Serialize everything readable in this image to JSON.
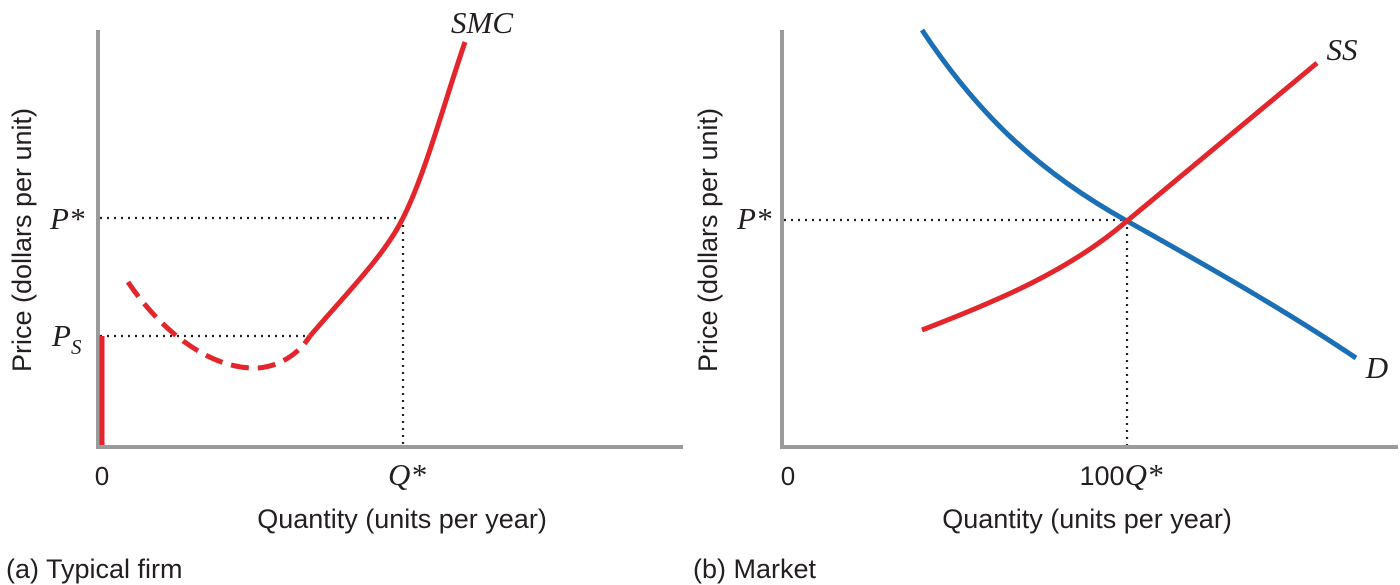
{
  "colors": {
    "supply": "#e2262b",
    "demand": "#1a6fb5",
    "axis": "#9b9b9b"
  },
  "panel_a": {
    "caption": "(a) Typical firm",
    "ylabel": "Price (dollars per unit)",
    "xlabel": "Quantity (units per year)",
    "origin": "0",
    "curve_label": "SMC",
    "price_label": "P*",
    "shutdown_label_main": "P",
    "shutdown_label_sub": "S",
    "quantity_label": "Q*"
  },
  "panel_b": {
    "caption": "(b) Market",
    "ylabel": "Price (dollars per unit)",
    "xlabel": "Quantity (units per year)",
    "origin": "0",
    "supply_label": "SS",
    "demand_label": "D",
    "price_label": "P*",
    "quantity_prefix": "100",
    "quantity_label": "Q*"
  }
}
